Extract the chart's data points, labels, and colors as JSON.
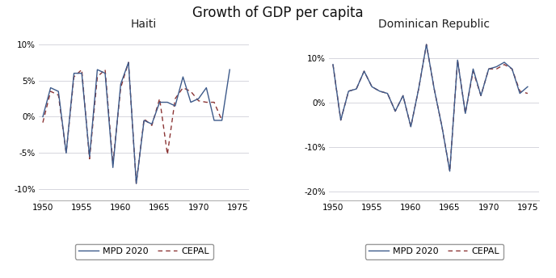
{
  "title": "Growth of GDP per capita",
  "haiti_title": "Haiti",
  "dr_title": "Dominican Republic",
  "legend_mpd": "MPD 2020",
  "legend_cepal": "CEPAL",
  "years_haiti": [
    1950,
    1951,
    1952,
    1953,
    1954,
    1955,
    1956,
    1957,
    1958,
    1959,
    1960,
    1961,
    1962,
    1963,
    1964,
    1965,
    1966,
    1967,
    1968,
    1969,
    1970,
    1971,
    1972,
    1973,
    1974,
    1975,
    1976
  ],
  "haiti_mpd": [
    0.0,
    4.0,
    3.5,
    -5.0,
    6.0,
    6.0,
    -5.5,
    6.5,
    6.0,
    -7.0,
    4.5,
    7.5,
    -9.2,
    -0.5,
    -1.0,
    2.0,
    2.0,
    1.5,
    5.5,
    2.0,
    2.5,
    4.0,
    -0.5,
    -0.5,
    6.5,
    null,
    null
  ],
  "haiti_cepal": [
    -0.8,
    3.5,
    3.0,
    -5.0,
    5.5,
    6.5,
    -5.8,
    5.5,
    6.5,
    -6.5,
    4.0,
    7.5,
    -9.2,
    -0.3,
    -1.2,
    2.5,
    -5.2,
    2.5,
    4.0,
    3.5,
    2.2,
    2.0,
    2.0,
    -0.5,
    null,
    null,
    null
  ],
  "years_dr": [
    1950,
    1951,
    1952,
    1953,
    1954,
    1955,
    1956,
    1957,
    1958,
    1959,
    1960,
    1961,
    1962,
    1963,
    1964,
    1965,
    1966,
    1967,
    1968,
    1969,
    1970,
    1971,
    1972,
    1973,
    1974,
    1975,
    1976
  ],
  "dr_mpd": [
    8.5,
    -4.0,
    2.5,
    3.0,
    7.0,
    3.5,
    2.5,
    2.0,
    -2.0,
    1.5,
    -5.5,
    3.0,
    13.0,
    3.0,
    -5.5,
    -15.5,
    9.5,
    -2.5,
    7.5,
    1.5,
    7.5,
    8.0,
    9.0,
    7.5,
    2.0,
    3.5,
    null
  ],
  "dr_cepal": [
    8.5,
    -4.0,
    2.5,
    3.0,
    7.0,
    3.5,
    2.5,
    2.0,
    -2.0,
    1.5,
    -5.5,
    3.0,
    13.0,
    3.0,
    -5.5,
    -15.5,
    9.5,
    -2.5,
    7.0,
    1.5,
    7.5,
    7.5,
    8.5,
    7.5,
    2.5,
    2.0,
    null
  ],
  "haiti_ylim": [
    -0.115,
    0.115
  ],
  "haiti_yticks": [
    -0.1,
    -0.05,
    0.0,
    0.05,
    0.1
  ],
  "dr_ylim": [
    -0.22,
    0.155
  ],
  "dr_yticks": [
    -0.2,
    -0.1,
    0.0,
    0.1
  ],
  "xlim": [
    1949.5,
    1976.5
  ],
  "xticks": [
    1950,
    1955,
    1960,
    1965,
    1970,
    1975
  ],
  "mpd_color": "#3d5a8a",
  "cepal_color": "#8b3535",
  "bg_color": "#ffffff",
  "grid_color": "#d0d0d8"
}
